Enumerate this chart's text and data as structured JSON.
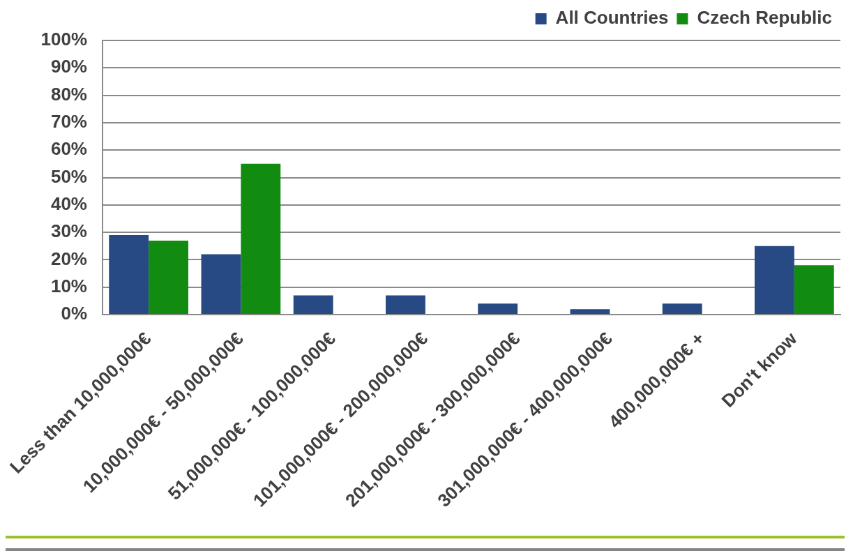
{
  "chart_data": {
    "type": "bar",
    "categories": [
      "Less than 10,000,000€",
      "10,000,000€ - 50,000,000€",
      "51,000,000€ - 100,000,000€",
      "101,000,000€ - 200,000,000€",
      "201,000,000€ - 300,000,000€",
      "301,000,000€ - 400,000,000€",
      "400,000,000€ +",
      "Don't know"
    ],
    "series": [
      {
        "name": "All Countries",
        "color": "#284a84",
        "values": [
          29,
          22,
          7,
          7,
          4,
          2,
          4,
          25
        ]
      },
      {
        "name": "Czech Republic",
        "color": "#128c10",
        "values": [
          27,
          55,
          null,
          null,
          null,
          null,
          null,
          18
        ]
      }
    ],
    "ylim": [
      0,
      100
    ],
    "yticks": [
      {
        "value": 0,
        "label": "0%"
      },
      {
        "value": 10,
        "label": "10%"
      },
      {
        "value": 20,
        "label": "20%"
      },
      {
        "value": 30,
        "label": "30%"
      },
      {
        "value": 40,
        "label": "40%"
      },
      {
        "value": 50,
        "label": "50%"
      },
      {
        "value": 60,
        "label": "60%"
      },
      {
        "value": 70,
        "label": "70%"
      },
      {
        "value": 80,
        "label": "80%"
      },
      {
        "value": 90,
        "label": "90%"
      },
      {
        "value": 100,
        "label": "100%"
      }
    ],
    "grid": "y",
    "legend": "top right"
  }
}
